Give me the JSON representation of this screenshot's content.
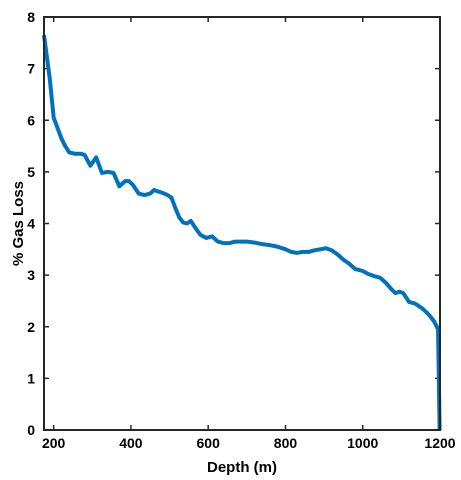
{
  "chart_data": {
    "type": "line",
    "title": "",
    "xlabel": "Depth (m)",
    "ylabel": "% Gas Loss",
    "xlim": [
      175,
      1200
    ],
    "ylim": [
      0,
      8
    ],
    "xticks": [
      200,
      400,
      600,
      800,
      1000,
      1200
    ],
    "yticks": [
      0,
      1,
      2,
      3,
      4,
      5,
      6,
      7,
      8
    ],
    "grid": false,
    "legend": "none",
    "series": [
      {
        "color": "#0072BD",
        "x": [
          175,
          190,
          200,
          210,
          220,
          230,
          240,
          255,
          270,
          280,
          295,
          310,
          325,
          340,
          355,
          370,
          385,
          395,
          405,
          420,
          435,
          450,
          460,
          470,
          480,
          495,
          505,
          515,
          525,
          535,
          545,
          555,
          570,
          580,
          595,
          610,
          625,
          640,
          655,
          670,
          685,
          700,
          720,
          740,
          760,
          780,
          800,
          815,
          830,
          845,
          860,
          875,
          890,
          905,
          920,
          935,
          950,
          965,
          980,
          1000,
          1015,
          1030,
          1045,
          1060,
          1075,
          1085,
          1095,
          1105,
          1120,
          1135,
          1145,
          1155,
          1165,
          1175,
          1185,
          1195,
          1197,
          1199
        ],
        "y": [
          7.65,
          6.8,
          6.05,
          5.85,
          5.65,
          5.5,
          5.38,
          5.35,
          5.35,
          5.33,
          5.12,
          5.28,
          4.98,
          5.0,
          4.98,
          4.72,
          4.82,
          4.82,
          4.75,
          4.58,
          4.55,
          4.58,
          4.65,
          4.62,
          4.6,
          4.55,
          4.5,
          4.3,
          4.12,
          4.02,
          4.0,
          4.05,
          3.88,
          3.78,
          3.72,
          3.75,
          3.65,
          3.62,
          3.62,
          3.65,
          3.65,
          3.65,
          3.63,
          3.6,
          3.58,
          3.55,
          3.5,
          3.45,
          3.43,
          3.45,
          3.45,
          3.48,
          3.5,
          3.52,
          3.48,
          3.4,
          3.3,
          3.22,
          3.12,
          3.08,
          3.02,
          2.98,
          2.95,
          2.85,
          2.72,
          2.65,
          2.68,
          2.65,
          2.48,
          2.45,
          2.4,
          2.35,
          2.28,
          2.2,
          2.1,
          1.95,
          1.0,
          0.0
        ]
      }
    ]
  }
}
